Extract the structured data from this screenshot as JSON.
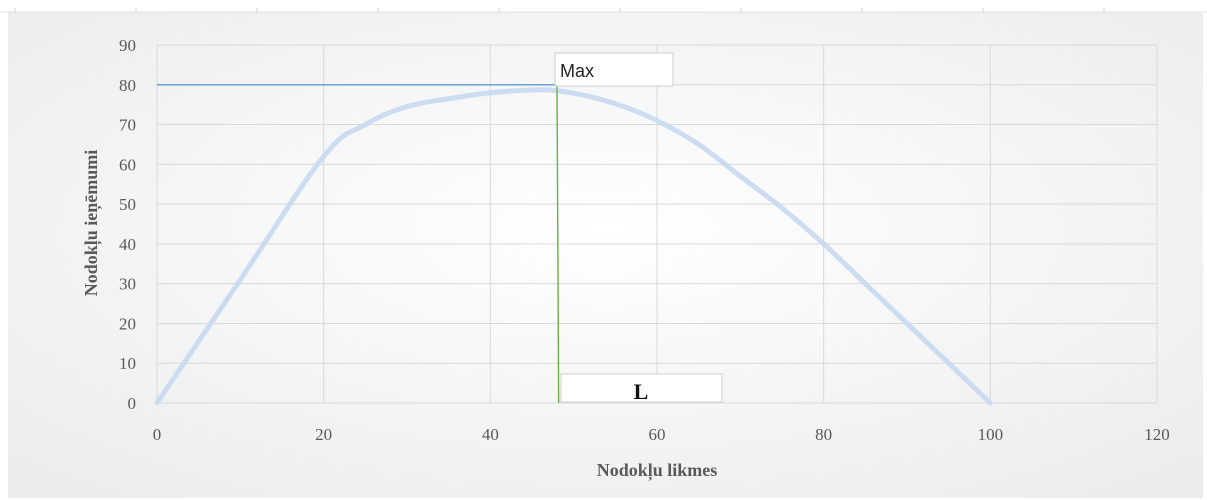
{
  "chart_data": {
    "type": "line",
    "xlabel": "Nodokļu likmes",
    "ylabel": "Nodokļu ieņēmumi",
    "xlim": [
      0,
      120
    ],
    "ylim": [
      0,
      90
    ],
    "x_ticks": [
      0,
      20,
      40,
      60,
      80,
      100,
      120
    ],
    "y_ticks": [
      0,
      10,
      20,
      30,
      40,
      50,
      60,
      70,
      80,
      90
    ],
    "grid": true,
    "series": [
      {
        "color": "#c6d9f1",
        "points": [
          [
            0,
            0
          ],
          [
            10,
            31
          ],
          [
            20,
            62
          ],
          [
            25,
            70
          ],
          [
            30,
            74.5
          ],
          [
            35,
            76.5
          ],
          [
            40,
            78
          ],
          [
            45,
            78.7
          ],
          [
            48,
            78.5
          ],
          [
            52,
            77
          ],
          [
            56,
            74.5
          ],
          [
            60,
            71
          ],
          [
            65,
            65
          ],
          [
            70,
            57
          ],
          [
            75,
            49
          ],
          [
            80,
            40
          ],
          [
            85,
            30
          ],
          [
            90,
            20
          ],
          [
            95,
            10
          ],
          [
            100,
            0
          ]
        ]
      }
    ],
    "annotations": {
      "max_line": {
        "y": 80,
        "x_end": 48,
        "color": "#5b9bd5"
      },
      "l_line": {
        "x_top": 48,
        "x_bottom": 48.2,
        "y_top": 80,
        "color": "#70ad47"
      },
      "max_label": "Max",
      "l_label": "L"
    }
  }
}
